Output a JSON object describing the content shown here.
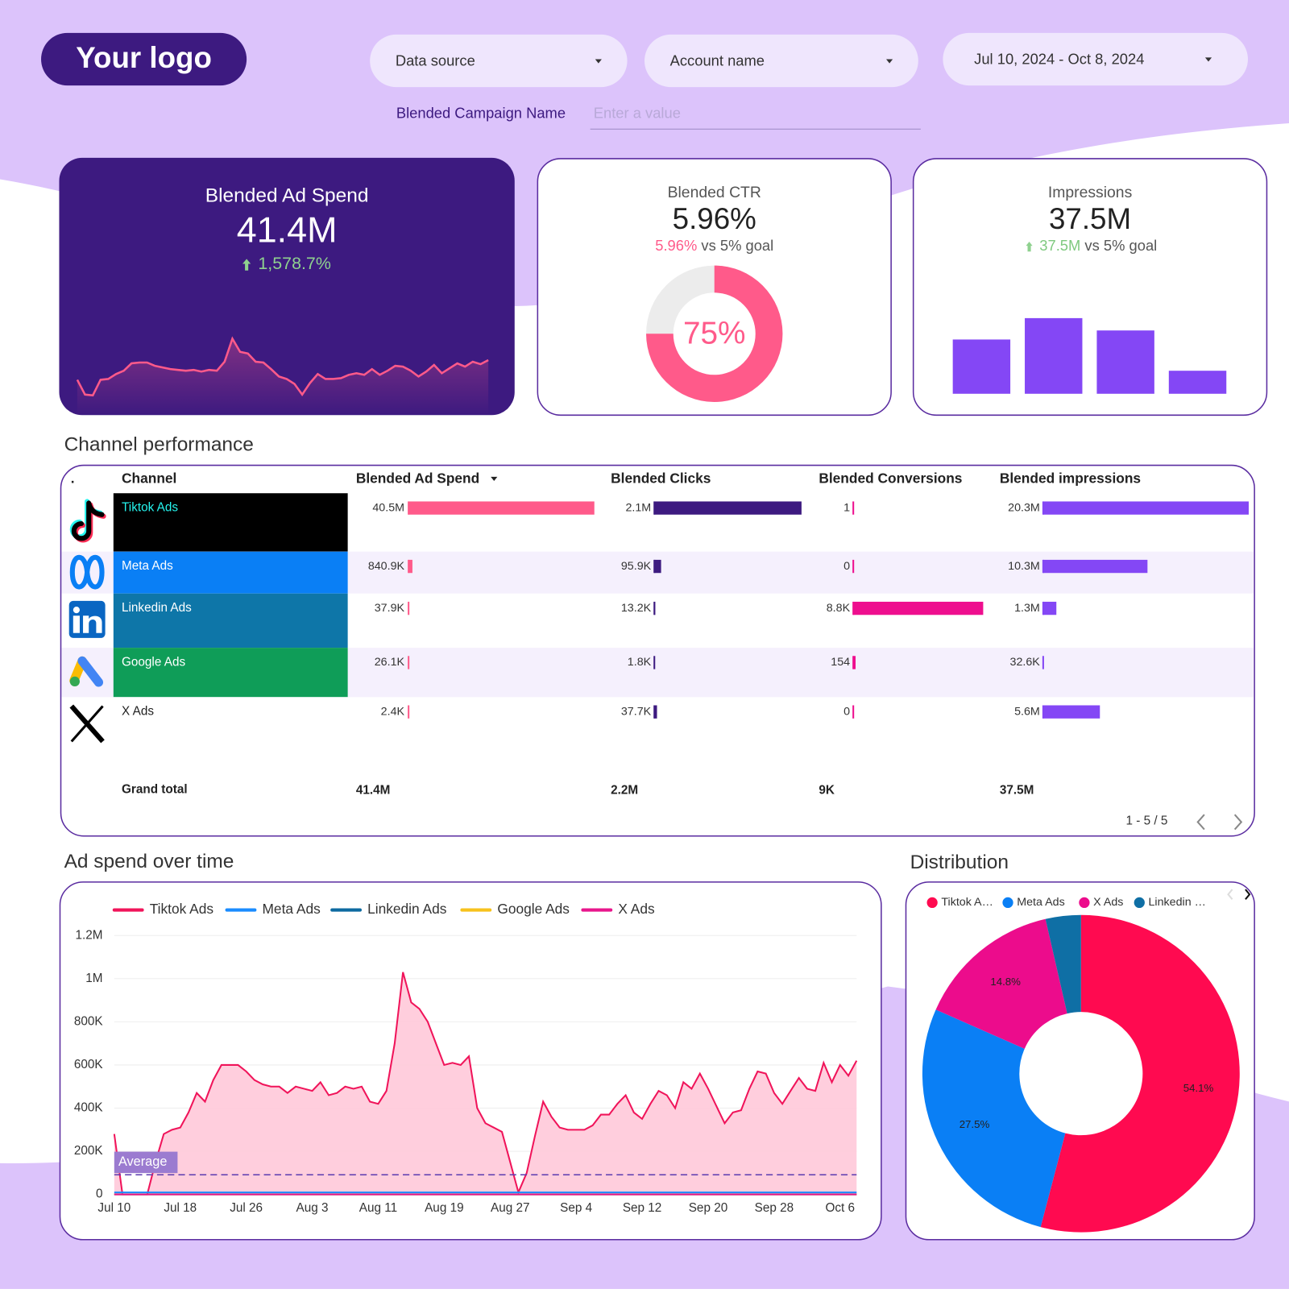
{
  "header": {
    "logo": "Your logo",
    "data_source": "Data source",
    "account_name": "Account name",
    "date_range": "Jul 10, 2024 - Oct 8, 2024",
    "filter_label": "Blended Campaign Name",
    "filter_placeholder": "Enter a value"
  },
  "kpis": {
    "ad_spend": {
      "title": "Blended Ad Spend",
      "value": "41.4M",
      "change": "1,578.7%"
    },
    "ctr": {
      "title": "Blended CTR",
      "value": "5.96%",
      "compare": "5.96%",
      "goal": "vs 5% goal"
    },
    "impressions": {
      "title": "Impressions",
      "value": "37.5M",
      "compare": "37.5M",
      "goal": "vs 5% goal"
    }
  },
  "sections": {
    "channel_performance": "Channel performance",
    "ad_spend_over_time": "Ad spend over time",
    "distribution": "Distribution"
  },
  "table": {
    "headers": [
      ".",
      "Channel",
      "Blended Ad Spend",
      "Blended Clicks",
      "Blended Conversions",
      "Blended impressions"
    ],
    "channels": [
      {
        "name": "Tiktok Ads",
        "color": "#000000",
        "text_color": "#25f4ee"
      },
      {
        "name": "Meta Ads",
        "color": "#0a7ff5",
        "text_color": "#ffffff"
      },
      {
        "name": "Linkedin Ads",
        "color": "#0e76a8",
        "text_color": "#ffffff"
      },
      {
        "name": "Google Ads",
        "color": "#0f9d58",
        "text_color": "#ffffff"
      },
      {
        "name": "X Ads",
        "color": "#ffffff",
        "text_color": "#222222"
      }
    ],
    "columns": [
      {
        "color": "#ff5a8a",
        "values": [
          40500000,
          840900,
          37900,
          26100,
          2400
        ],
        "value_labels": [
          "40.5M",
          "840.9K",
          "37.9K",
          "26.1K",
          "2.4K"
        ]
      },
      {
        "color": "#3d1a80",
        "values": [
          2100000,
          95900,
          13200,
          1800,
          37700
        ],
        "value_labels": [
          "2.1M",
          "95.9K",
          "13.2K",
          "1.8K",
          "37.7K"
        ]
      },
      {
        "color": "#ee0e8e",
        "values": [
          1,
          0,
          8800,
          154,
          0
        ],
        "value_labels": [
          "1",
          "0",
          "8.8K",
          "154",
          "0"
        ]
      },
      {
        "color": "#8447f5",
        "values": [
          20300000,
          10300000,
          1300000,
          32600,
          5600000
        ],
        "value_labels": [
          "20.3M",
          "10.3M",
          "1.3M",
          "32.6K",
          "5.6M"
        ]
      }
    ],
    "grand_total": {
      "label": "Grand total",
      "values": [
        "41.4M",
        "2.2M",
        "9K",
        "37.5M"
      ]
    },
    "pagination": "1 - 5 / 5"
  },
  "chart_data": [
    {
      "type": "area",
      "color": "#ff5a8a",
      "ylim": [
        0,
        90
      ],
      "values": [
        28,
        10,
        9,
        28,
        29,
        35,
        39,
        48,
        49,
        49,
        45,
        43,
        41,
        40,
        39,
        40,
        38,
        40,
        39,
        50,
        78,
        62,
        60,
        50,
        49,
        41,
        32,
        29,
        23,
        10,
        24,
        35,
        29,
        29,
        30,
        34,
        36,
        34,
        41,
        34,
        39,
        45,
        44,
        39,
        32,
        38,
        46,
        36,
        42,
        48,
        44,
        50,
        47,
        52
      ]
    },
    {
      "type": "donut",
      "value": 75,
      "value_label": "75%",
      "ylim": [
        0,
        100
      ],
      "color": "#ff5a8a",
      "track_color": "#ececec"
    },
    {
      "type": "bar",
      "values": [
        66,
        92,
        77,
        28
      ],
      "ylim": [
        0,
        100
      ],
      "color": "#8447f5"
    },
    {
      "type": "line",
      "legend": "top",
      "grid": true,
      "x": [
        "Jul 10",
        null,
        null,
        null,
        null,
        null,
        null,
        null,
        "Jul 18",
        null,
        null,
        null,
        null,
        null,
        null,
        null,
        "Jul 26",
        null,
        null,
        null,
        null,
        null,
        null,
        null,
        "Aug 3",
        null,
        null,
        null,
        null,
        null,
        null,
        null,
        "Aug 11",
        null,
        null,
        null,
        null,
        null,
        null,
        null,
        "Aug 19",
        null,
        null,
        null,
        null,
        null,
        null,
        null,
        "Aug 27",
        null,
        null,
        null,
        null,
        null,
        null,
        null,
        "Sep 4",
        null,
        null,
        null,
        null,
        null,
        null,
        null,
        "Sep 12",
        null,
        null,
        null,
        null,
        null,
        null,
        null,
        "Sep 20",
        null,
        null,
        null,
        null,
        null,
        null,
        null,
        "Sep 28",
        null,
        null,
        null,
        null,
        null,
        null,
        null,
        "Oct 6",
        null,
        null
      ],
      "ylim": [
        0,
        1200000
      ],
      "yticks": [
        0,
        {
          "value": 200000,
          "label": "200K"
        },
        {
          "value": 400000,
          "label": "400K"
        },
        {
          "value": 600000,
          "label": "600K"
        },
        {
          "value": 800000,
          "label": "800K"
        },
        {
          "value": 1000000,
          "label": "1M"
        },
        {
          "value": 1200000,
          "label": "1.2M"
        }
      ],
      "average": {
        "label": "Average",
        "value": 91000,
        "color": "#5b3bb0"
      },
      "series": [
        {
          "name": "Tiktok Ads",
          "color": "#f0145a",
          "fill": "#ffc9d9",
          "values": [
            280000,
            0,
            0,
            0,
            0,
            150000,
            280000,
            300000,
            310000,
            380000,
            470000,
            430000,
            530000,
            600000,
            600000,
            600000,
            570000,
            530000,
            510000,
            500000,
            500000,
            470000,
            500000,
            490000,
            480000,
            520000,
            460000,
            470000,
            500000,
            490000,
            500000,
            430000,
            420000,
            480000,
            700000,
            1030000,
            890000,
            860000,
            800000,
            700000,
            600000,
            610000,
            600000,
            640000,
            400000,
            330000,
            310000,
            290000,
            150000,
            10000,
            100000,
            270000,
            430000,
            360000,
            310000,
            300000,
            300000,
            300000,
            320000,
            370000,
            370000,
            420000,
            460000,
            380000,
            350000,
            420000,
            480000,
            460000,
            400000,
            520000,
            490000,
            560000,
            490000,
            410000,
            330000,
            380000,
            390000,
            490000,
            570000,
            560000,
            470000,
            420000,
            480000,
            540000,
            490000,
            480000,
            610000,
            520000,
            600000,
            550000,
            620000
          ]
        },
        {
          "name": "Meta Ads",
          "color": "#1a8cff",
          "values": [
            9240,
            9240,
            9240,
            9240,
            9240,
            9240,
            9240,
            9240,
            9240,
            9240,
            9240,
            9240,
            9240,
            9240,
            9240,
            9240,
            9240,
            9240,
            9240,
            9240,
            9240,
            9240,
            9240,
            9240,
            9240,
            9240,
            9240,
            9240,
            9240,
            9240,
            9240,
            9240,
            9240,
            9240,
            9240,
            9240,
            9240,
            9240,
            9240,
            9240,
            9240,
            9240,
            9240,
            9240,
            9240,
            9240,
            9240,
            9240,
            9240,
            9240,
            9240,
            9240,
            9240,
            9240,
            9240,
            9240,
            9240,
            9240,
            9240,
            9240,
            9240,
            9240,
            9240,
            9240,
            9240,
            9240,
            9240,
            9240,
            9240,
            9240,
            9240,
            9240,
            9240,
            9240,
            9240,
            9240,
            9240,
            9240,
            9240,
            9240,
            9240,
            9240,
            9240,
            9240,
            9240,
            9240,
            9240,
            9240,
            9240,
            9240,
            9240
          ]
        },
        {
          "name": "Linkedin Ads",
          "color": "#0d6aa0",
          "values": [
            416,
            416,
            416,
            416,
            416,
            416,
            416,
            416,
            416,
            416,
            416,
            416,
            416,
            416,
            416,
            416,
            416,
            416,
            416,
            416,
            416,
            416,
            416,
            416,
            416,
            416,
            416,
            416,
            416,
            416,
            416,
            416,
            416,
            416,
            416,
            416,
            416,
            416,
            416,
            416,
            416,
            416,
            416,
            416,
            416,
            416,
            416,
            416,
            416,
            416,
            416,
            416,
            416,
            416,
            416,
            416,
            416,
            416,
            416,
            416,
            416,
            416,
            416,
            416,
            416,
            416,
            416,
            416,
            416,
            416,
            416,
            416,
            416,
            416,
            416,
            416,
            416,
            416,
            416,
            416,
            416,
            416,
            416,
            416,
            416,
            416,
            416,
            416,
            416,
            416,
            416
          ]
        },
        {
          "name": "Google Ads",
          "color": "#f7c21c",
          "values": [
            287,
            287,
            287,
            287,
            287,
            287,
            287,
            287,
            287,
            287,
            287,
            287,
            287,
            287,
            287,
            287,
            287,
            287,
            287,
            287,
            287,
            287,
            287,
            287,
            287,
            287,
            287,
            287,
            287,
            287,
            287,
            287,
            287,
            287,
            287,
            287,
            287,
            287,
            287,
            287,
            287,
            287,
            287,
            287,
            287,
            287,
            287,
            287,
            287,
            287,
            287,
            287,
            287,
            287,
            287,
            287,
            287,
            287,
            287,
            287,
            287,
            287,
            287,
            287,
            287,
            287,
            287,
            287,
            287,
            287,
            287,
            287,
            287,
            287,
            287,
            287,
            287,
            287,
            287,
            287,
            287,
            287,
            287,
            287,
            287,
            287,
            287,
            287,
            287,
            287,
            287
          ]
        },
        {
          "name": "X Ads",
          "color": "#e8168c",
          "values": [
            26,
            26,
            26,
            26,
            26,
            26,
            26,
            26,
            26,
            26,
            26,
            26,
            26,
            26,
            26,
            26,
            26,
            26,
            26,
            26,
            26,
            26,
            26,
            26,
            26,
            26,
            26,
            26,
            26,
            26,
            26,
            26,
            26,
            26,
            26,
            26,
            26,
            26,
            26,
            26,
            26,
            26,
            26,
            26,
            26,
            26,
            26,
            26,
            26,
            26,
            26,
            26,
            26,
            26,
            26,
            26,
            26,
            26,
            26,
            26,
            26,
            26,
            26,
            26,
            26,
            26,
            26,
            26,
            26,
            26,
            26,
            26,
            26,
            26,
            26,
            26,
            26,
            26,
            26,
            26,
            26,
            26,
            26,
            26,
            26,
            26,
            26,
            26,
            26,
            26,
            26
          ]
        }
      ]
    },
    {
      "type": "pie",
      "legend": "top",
      "categories": [
        "Tiktok A…",
        "Meta Ads",
        "X Ads",
        "Linkedin …"
      ],
      "values": [
        54.1,
        27.5,
        14.8,
        3.6
      ],
      "value_labels": [
        "54.1%",
        "27.5%",
        "14.8%",
        null
      ],
      "colors": [
        "#ff0a50",
        "#0a7ff5",
        "#ec0c8c",
        "#0f6fa5"
      ]
    }
  ]
}
